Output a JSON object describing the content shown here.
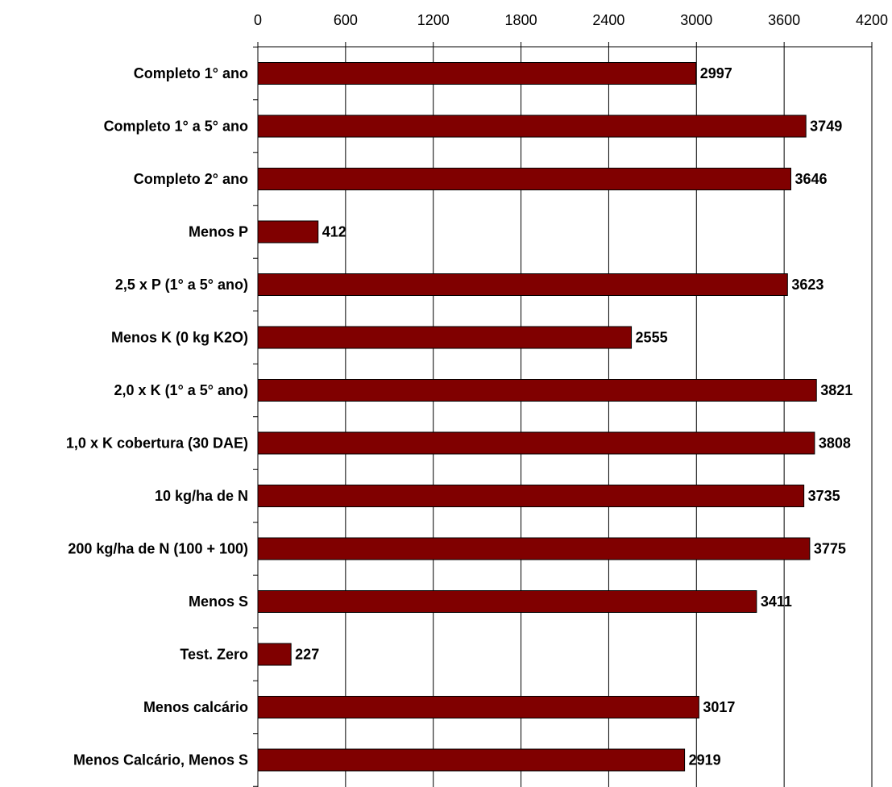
{
  "chart_data": {
    "type": "bar",
    "orientation": "horizontal",
    "categories": [
      "Completo 1° ano",
      "Completo 1° a 5° ano",
      "Completo 2° ano",
      "Menos P",
      "2,5 x P (1° a 5° ano)",
      "Menos K  (0 kg K2O)",
      "2,0 x K (1° a 5° ano)",
      "1,0 x K cobertura (30 DAE)",
      "10 kg/ha de N",
      "200 kg/ha de N (100 + 100)",
      "Menos S",
      "Test. Zero",
      "Menos calcário",
      "Menos Calcário, Menos S"
    ],
    "values": [
      2997,
      3749,
      3646,
      412,
      3623,
      2555,
      3821,
      3808,
      3735,
      3775,
      3411,
      227,
      3017,
      2919
    ],
    "data_labels": [
      "2997",
      "3749",
      "3646",
      "412",
      "3623",
      "2555",
      "3821",
      "3808",
      "3735",
      "3775",
      "3411",
      "227",
      "3017",
      "2919"
    ],
    "xlim": [
      0,
      4200
    ],
    "xticks": [
      0,
      600,
      1200,
      1800,
      2400,
      3000,
      3600,
      4200
    ],
    "xtick_labels": [
      "0",
      "600",
      "1200",
      "1800",
      "2400",
      "3000",
      "3600",
      "4200"
    ],
    "x_axis_position": "top",
    "grid": true,
    "legend": "none",
    "title": "",
    "xlabel": "",
    "ylabel": "",
    "colors": {
      "bar": "#800000",
      "bar_stroke": "#000000",
      "grid": "#000000",
      "text": "#000000"
    }
  }
}
